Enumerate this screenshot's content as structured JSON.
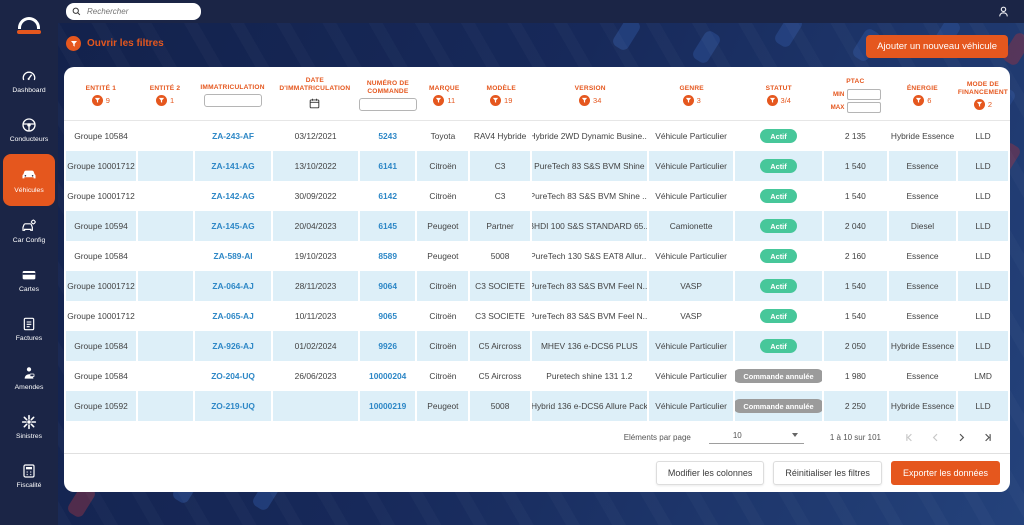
{
  "colors": {
    "brand_orange": "#E5571E",
    "navy": "#1B2546",
    "link_blue": "#2D87C6",
    "row_alt_blue": "#DDEFF8",
    "status_active_green": "#47C79A",
    "status_cancelled_gray": "#9B9B9B"
  },
  "topbar": {
    "search_placeholder": "Rechercher"
  },
  "sidebar": {
    "items": [
      {
        "label": "Dashboard",
        "icon": "gauge-icon",
        "active": false
      },
      {
        "label": "Conducteurs",
        "icon": "steering-wheel-icon",
        "active": false
      },
      {
        "label": "Véhicules",
        "icon": "car-icon",
        "active": true
      },
      {
        "label": "Car Config",
        "icon": "car-config-icon",
        "active": false
      },
      {
        "label": "Cartes",
        "icon": "card-icon",
        "active": false
      },
      {
        "label": "Factures",
        "icon": "invoice-icon",
        "active": false
      },
      {
        "label": "Amendes",
        "icon": "fine-icon",
        "active": false
      },
      {
        "label": "Sinistres",
        "icon": "collision-icon",
        "active": false
      },
      {
        "label": "Fiscalité",
        "icon": "calculator-icon",
        "active": false
      }
    ]
  },
  "content": {
    "open_filters_label": "Ouvrir les filtres",
    "add_vehicle_button": "Ajouter un nouveau véhicule"
  },
  "table": {
    "columns": [
      {
        "label": "ENTITÉ 1",
        "type": "filter",
        "filter_count": "9"
      },
      {
        "label": "ENTITÉ 2",
        "type": "filter",
        "filter_count": "1"
      },
      {
        "label": "IMMATRICULATION",
        "type": "input"
      },
      {
        "label": "DATE D'IMMATRICULATION",
        "type": "date"
      },
      {
        "label": "NUMÉRO DE COMMANDE",
        "type": "input"
      },
      {
        "label": "MARQUE",
        "type": "filter",
        "filter_count": "11"
      },
      {
        "label": "MODÈLE",
        "type": "filter",
        "filter_count": "19"
      },
      {
        "label": "VERSION",
        "type": "filter",
        "filter_count": "34"
      },
      {
        "label": "GENRE",
        "type": "filter",
        "filter_count": "3"
      },
      {
        "label": "STATUT",
        "type": "filter",
        "filter_count": "3/4"
      },
      {
        "label": "PTAC",
        "type": "minmax",
        "min_label": "MIN",
        "max_label": "MAX"
      },
      {
        "label": "ÉNERGIE",
        "type": "filter",
        "filter_count": "6"
      },
      {
        "label": "MODE DE FINANCEMENT",
        "type": "filter",
        "filter_count": "2"
      }
    ],
    "rows": [
      {
        "entite1": "Groupe 10584",
        "entite2": "",
        "immatriculation": "ZA-243-AF",
        "date_immatriculation": "03/12/2021",
        "numero_commande": "5243",
        "marque": "Toyota",
        "modele": "RAV4 Hybride",
        "version": "Hybride 2WD Dynamic Busine...",
        "genre": "Véhicule Particulier",
        "statut": "Actif",
        "ptac": "2 135",
        "energie": "Hybride Essence",
        "mode_financement": "LLD"
      },
      {
        "entite1": "Groupe 10001712",
        "entite2": "",
        "immatriculation": "ZA-141-AG",
        "date_immatriculation": "13/10/2022",
        "numero_commande": "6141",
        "marque": "Citroën",
        "modele": "C3",
        "version": "PureTech 83 S&S BVM Shine",
        "genre": "Véhicule Particulier",
        "statut": "Actif",
        "ptac": "1 540",
        "energie": "Essence",
        "mode_financement": "LLD"
      },
      {
        "entite1": "Groupe 10001712",
        "entite2": "",
        "immatriculation": "ZA-142-AG",
        "date_immatriculation": "30/09/2022",
        "numero_commande": "6142",
        "marque": "Citroën",
        "modele": "C3",
        "version": "PureTech 83 S&S BVM Shine ...",
        "genre": "Véhicule Particulier",
        "statut": "Actif",
        "ptac": "1 540",
        "energie": "Essence",
        "mode_financement": "LLD"
      },
      {
        "entite1": "Groupe 10594",
        "entite2": "",
        "immatriculation": "ZA-145-AG",
        "date_immatriculation": "20/04/2023",
        "numero_commande": "6145",
        "marque": "Peugeot",
        "modele": "Partner",
        "version": "BHDI 100 S&S STANDARD 65...",
        "genre": "Camionette",
        "statut": "Actif",
        "ptac": "2 040",
        "energie": "Diesel",
        "mode_financement": "LLD"
      },
      {
        "entite1": "Groupe 10584",
        "entite2": "",
        "immatriculation": "ZA-589-AI",
        "date_immatriculation": "19/10/2023",
        "numero_commande": "8589",
        "marque": "Peugeot",
        "modele": "5008",
        "version": "PureTech 130 S&S EAT8 Allur...",
        "genre": "Véhicule Particulier",
        "statut": "Actif",
        "ptac": "2 160",
        "energie": "Essence",
        "mode_financement": "LLD"
      },
      {
        "entite1": "Groupe 10001712",
        "entite2": "",
        "immatriculation": "ZA-064-AJ",
        "date_immatriculation": "28/11/2023",
        "numero_commande": "9064",
        "marque": "Citroën",
        "modele": "C3 SOCIETE",
        "version": "PureTech 83 S&S BVM Feel N...",
        "genre": "VASP",
        "statut": "Actif",
        "ptac": "1 540",
        "energie": "Essence",
        "mode_financement": "LLD"
      },
      {
        "entite1": "Groupe 10001712",
        "entite2": "",
        "immatriculation": "ZA-065-AJ",
        "date_immatriculation": "10/11/2023",
        "numero_commande": "9065",
        "marque": "Citroën",
        "modele": "C3 SOCIETE",
        "version": "PureTech 83 S&S BVM Feel N...",
        "genre": "VASP",
        "statut": "Actif",
        "ptac": "1 540",
        "energie": "Essence",
        "mode_financement": "LLD"
      },
      {
        "entite1": "Groupe 10584",
        "entite2": "",
        "immatriculation": "ZA-926-AJ",
        "date_immatriculation": "01/02/2024",
        "numero_commande": "9926",
        "marque": "Citroën",
        "modele": "C5 Aircross",
        "version": "MHEV 136 e-DCS6 PLUS",
        "genre": "Véhicule Particulier",
        "statut": "Actif",
        "ptac": "2 050",
        "energie": "Hybride Essence",
        "mode_financement": "LLD"
      },
      {
        "entite1": "Groupe 10584",
        "entite2": "",
        "immatriculation": "ZO-204-UQ",
        "date_immatriculation": "26/06/2023",
        "numero_commande": "10000204",
        "marque": "Citroën",
        "modele": "C5 Aircross",
        "version": "Puretech shine 131 1.2",
        "genre": "Véhicule Particulier",
        "statut": "Commande annulée",
        "ptac": "1 980",
        "energie": "Essence",
        "mode_financement": "LMD"
      },
      {
        "entite1": "Groupe 10592",
        "entite2": "",
        "immatriculation": "ZO-219-UQ",
        "date_immatriculation": "",
        "numero_commande": "10000219",
        "marque": "Peugeot",
        "modele": "5008",
        "version": "Hybrid 136 e-DCS6 Allure Pack",
        "genre": "Véhicule Particulier",
        "statut": "Commande annulée",
        "ptac": "2 250",
        "energie": "Hybride Essence",
        "mode_financement": "LLD"
      }
    ]
  },
  "pagination": {
    "items_per_page_label": "Eléments par page",
    "items_per_page_value": "10",
    "range_label": "1 à 10 sur 101"
  },
  "footer": {
    "buttons": [
      {
        "label": "Modifier les colonnes",
        "style": "outline",
        "name": "edit-columns-button"
      },
      {
        "label": "Réinitialiser les filtres",
        "style": "outline",
        "name": "reset-filters-button"
      },
      {
        "label": "Exporter les données",
        "style": "primary",
        "name": "export-data-button"
      }
    ]
  }
}
